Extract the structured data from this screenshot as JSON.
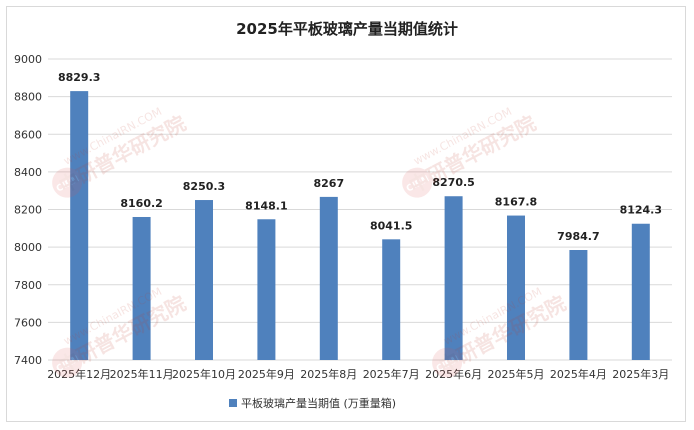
{
  "chart_data": {
    "type": "bar",
    "title": "2025年平板玻璃产量当期值统计",
    "categories": [
      "2025年12月",
      "2025年11月",
      "2025年10月",
      "2025年9月",
      "2025年8月",
      "2025年7月",
      "2025年6月",
      "2025年5月",
      "2025年4月",
      "2025年3月"
    ],
    "series": [
      {
        "name": "平板玻璃产量当期值 (万重量箱)",
        "values": [
          8829.3,
          8160.2,
          8250.3,
          8148.1,
          8267,
          8041.5,
          8270.5,
          8167.8,
          7984.7,
          8124.3
        ],
        "labels": [
          "8829.3",
          "8160.2",
          "8250.3",
          "8148.1",
          "8267",
          "8041.5",
          "8270.5",
          "8167.8",
          "7984.7",
          "8124.3"
        ],
        "color": "#4f81bd"
      }
    ],
    "yticks": [
      "7400",
      "7600",
      "7800",
      "8000",
      "8200",
      "8400",
      "8600",
      "8800",
      "9000"
    ],
    "ylim": [
      7400,
      9000
    ],
    "grid": true,
    "legend_position": "bottom",
    "watermark_text": [
      "www.ChinaIRN.COM",
      "中研普华研究院",
      "CIRN"
    ]
  }
}
